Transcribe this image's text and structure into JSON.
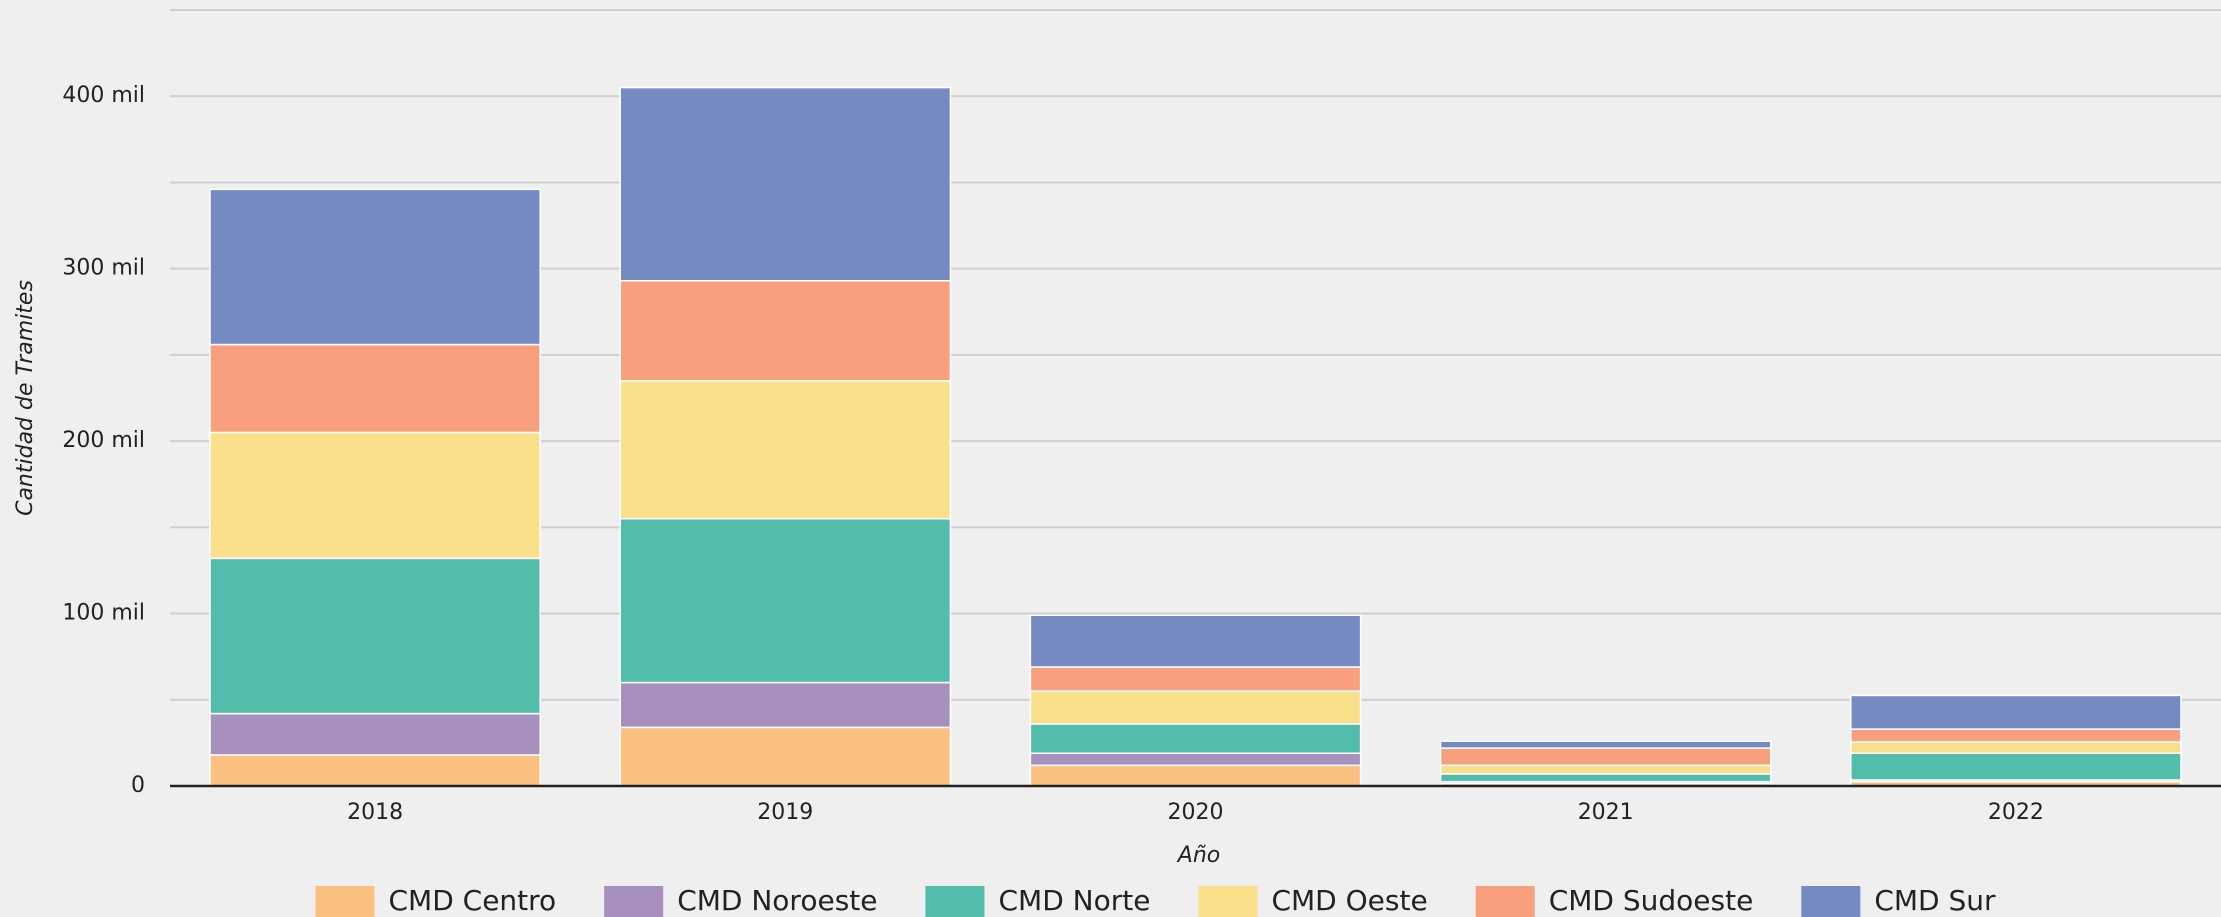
{
  "chart_data": {
    "type": "stacked_bar",
    "x_title": "Año",
    "y_title": "Cantidad de Tramites",
    "categories": [
      "2018",
      "2019",
      "2020",
      "2021",
      "2022"
    ],
    "series": [
      {
        "name": "CMD Centro",
        "color": "#fbbf7f",
        "values": [
          18000,
          34000,
          12000,
          1500,
          2500
        ]
      },
      {
        "name": "CMD Noroeste",
        "color": "#a78fbe",
        "values": [
          24000,
          26000,
          7000,
          1000,
          1000
        ]
      },
      {
        "name": "CMD Norte",
        "color": "#52bdab",
        "values": [
          90000,
          95000,
          17000,
          4500,
          15500
        ]
      },
      {
        "name": "CMD Oeste",
        "color": "#fbe08b",
        "values": [
          73000,
          80000,
          19000,
          5000,
          6500
        ]
      },
      {
        "name": "CMD Sudoeste",
        "color": "#f8a07e",
        "values": [
          51000,
          58000,
          14000,
          10000,
          7500
        ]
      },
      {
        "name": "CMD Sur",
        "color": "#7589c2",
        "values": [
          90000,
          112000,
          30000,
          4000,
          19500
        ]
      }
    ],
    "ylim": [
      0,
      450000
    ],
    "yticks": [
      0,
      {
        "value": 100000,
        "label": "100 mil"
      },
      {
        "value": 200000,
        "label": "200 mil"
      },
      {
        "value": 300000,
        "label": "300 mil"
      },
      {
        "value": 400000,
        "label": "400 mil"
      }
    ],
    "ygrid_minor": [
      50000,
      150000,
      250000,
      350000,
      450000
    ],
    "grid": true,
    "legend": "bottom"
  }
}
